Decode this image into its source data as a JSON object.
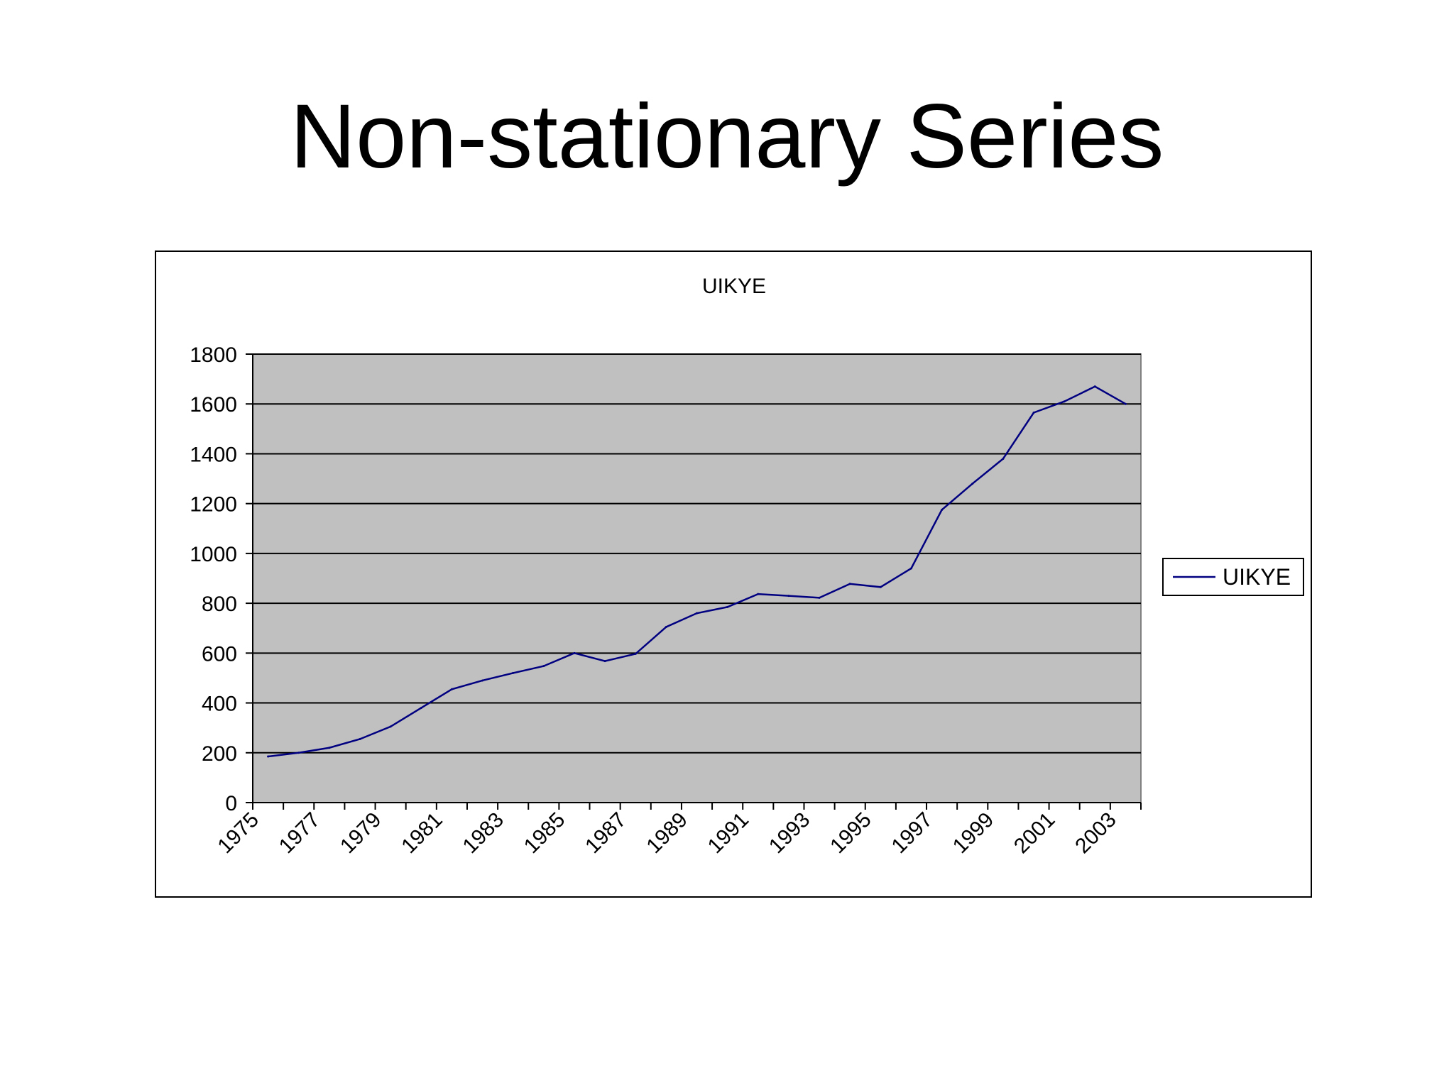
{
  "slide": {
    "title": "Non-stationary Series"
  },
  "colors": {
    "plot_background": "#c0c0c0",
    "series_line": "#000080",
    "gridline": "#000000"
  },
  "chart_data": {
    "type": "line",
    "title": "UIKYE",
    "xlabel": "",
    "ylabel": "",
    "ylim": [
      0,
      1800
    ],
    "y_ticks": [
      0,
      200,
      400,
      600,
      800,
      1000,
      1200,
      1400,
      1600,
      1800
    ],
    "x_tick_labels": [
      "1975",
      "1977",
      "1979",
      "1981",
      "1983",
      "1985",
      "1987",
      "1989",
      "1991",
      "1993",
      "1995",
      "1997",
      "1999",
      "2001",
      "2003"
    ],
    "grid": true,
    "legend": "right",
    "categories": [
      1975,
      1976,
      1977,
      1978,
      1979,
      1980,
      1981,
      1982,
      1983,
      1984,
      1985,
      1986,
      1987,
      1988,
      1989,
      1990,
      1991,
      1992,
      1993,
      1994,
      1995,
      1996,
      1997,
      1998,
      1999,
      2000,
      2001,
      2002,
      2003
    ],
    "series": [
      {
        "name": "UIKYE",
        "values": [
          185,
          200,
          220,
          255,
          305,
          380,
          455,
          490,
          520,
          548,
          600,
          568,
          597,
          705,
          760,
          785,
          837,
          830,
          822,
          878,
          865,
          940,
          1175,
          1280,
          1380,
          1565,
          1610,
          1670,
          1600
        ]
      }
    ]
  }
}
